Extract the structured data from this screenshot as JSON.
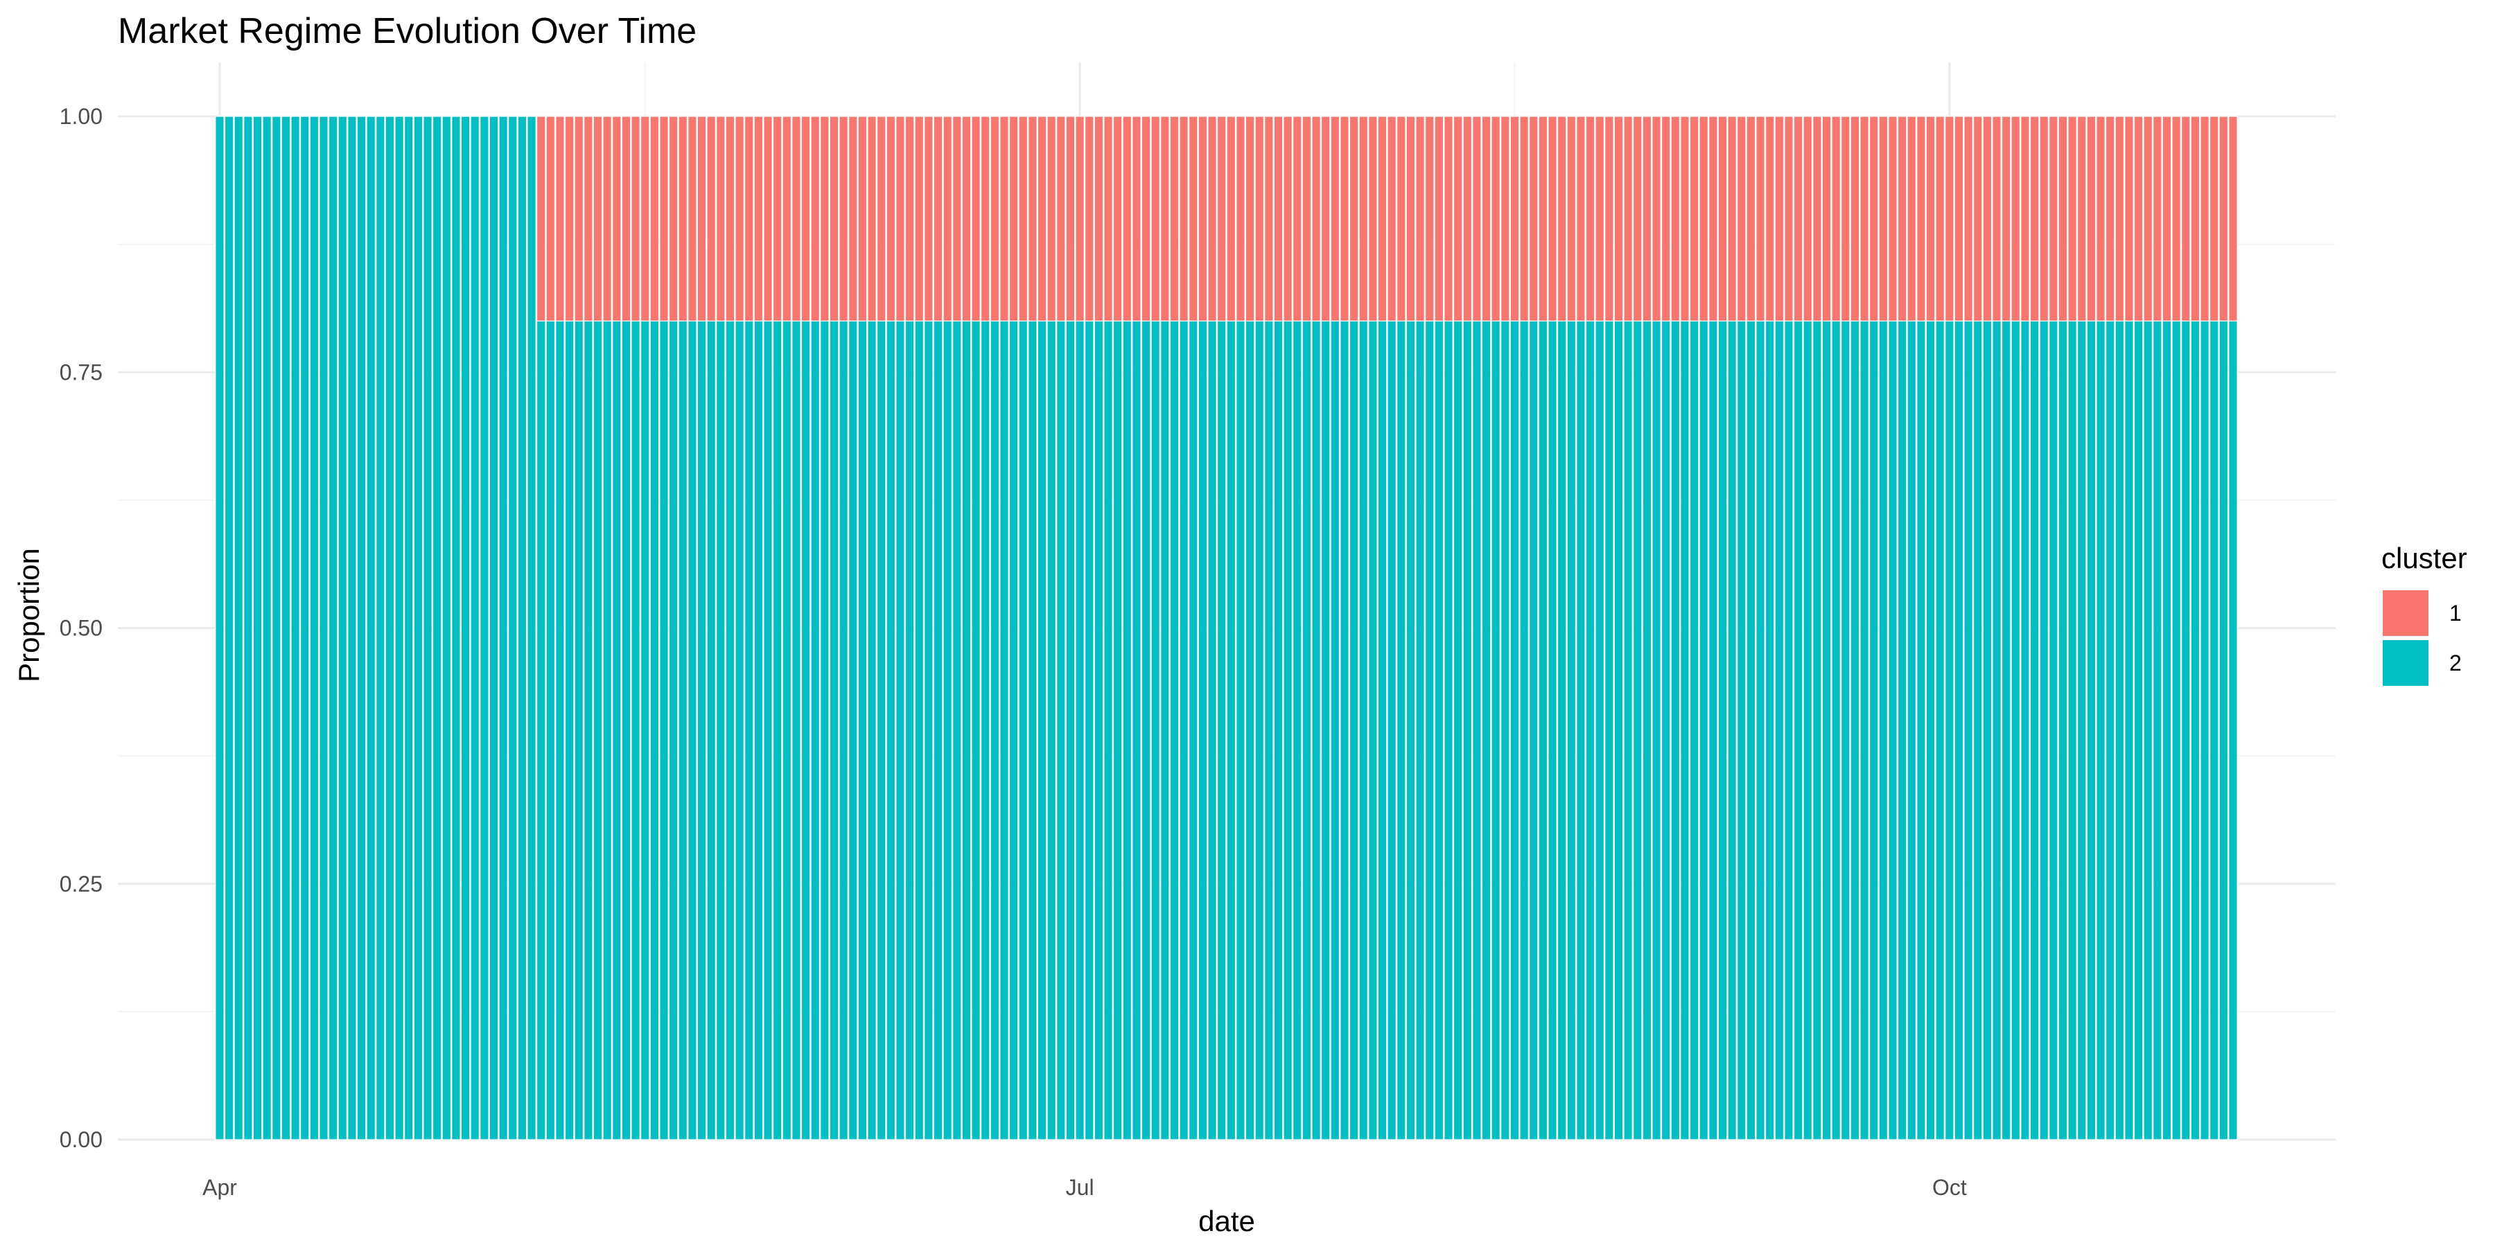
{
  "chart_data": {
    "type": "bar",
    "stacked": "fill",
    "title": "Market Regime Evolution Over Time",
    "xlabel": "date",
    "ylabel": "Proportion",
    "x_range": [
      "2024-04-01",
      "2024-10-31"
    ],
    "ylim": [
      0,
      1
    ],
    "y_ticks": [
      {
        "value": 0,
        "label": "0.00"
      },
      {
        "value": 0.25,
        "label": "0.25"
      },
      {
        "value": 0.5,
        "label": "0.50"
      },
      {
        "value": 0.75,
        "label": "0.75"
      },
      {
        "value": 1,
        "label": "1.00"
      }
    ],
    "x_ticks": [
      {
        "date": "2024-04-01",
        "label": "Apr"
      },
      {
        "date": "2024-07-01",
        "label": "Jul"
      },
      {
        "date": "2024-10-01",
        "label": "Oct"
      }
    ],
    "x_minor_ticks": [
      "2024-05-16",
      "2024-08-16"
    ],
    "grid": true,
    "legend": {
      "title": "cluster",
      "position": "right"
    },
    "series": [
      {
        "name": "1",
        "color": "#F8766D",
        "segments": [
          {
            "from": "2024-04-01",
            "to": "2024-05-04",
            "value": 0
          },
          {
            "from": "2024-05-05",
            "to": "2024-10-31",
            "value": 0.2
          }
        ]
      },
      {
        "name": "2",
        "color": "#00BFC4",
        "segments": [
          {
            "from": "2024-04-01",
            "to": "2024-05-04",
            "value": 1
          },
          {
            "from": "2024-05-05",
            "to": "2024-10-31",
            "value": 0.8
          }
        ]
      }
    ]
  }
}
